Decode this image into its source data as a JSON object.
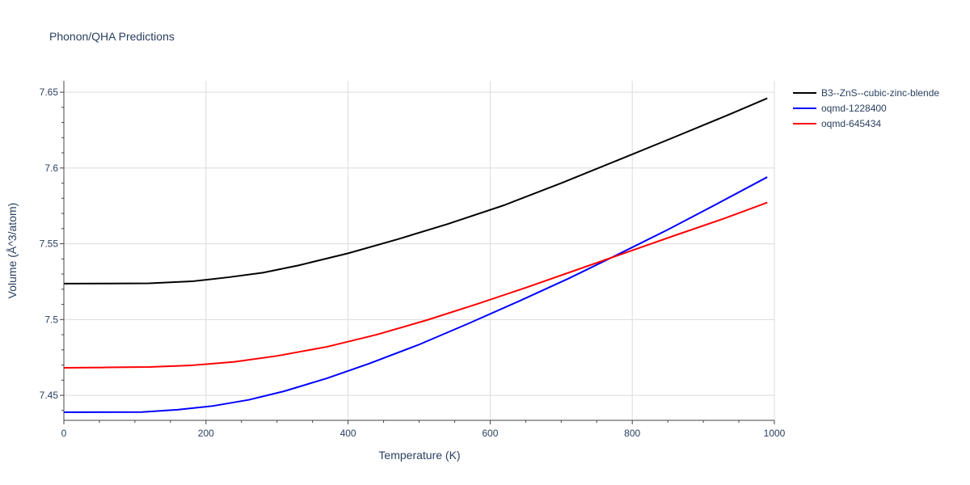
{
  "chart_data": {
    "type": "line",
    "title": "Phonon/QHA Predictions",
    "xlabel": "Temperature (K)",
    "ylabel": "Volume (Å^3/atom)",
    "xlim": [
      0,
      1000
    ],
    "ylim": [
      7.4335,
      7.6575
    ],
    "x_ticks": [
      0,
      200,
      400,
      600,
      800,
      1000
    ],
    "x_tick_labels": [
      "0",
      "200",
      "400",
      "600",
      "800",
      "1000"
    ],
    "y_ticks": [
      7.45,
      7.5,
      7.55,
      7.6,
      7.65
    ],
    "y_tick_labels": [
      "7.45",
      "7.5",
      "7.55",
      "7.6",
      "7.65"
    ],
    "grid": true,
    "legend_position": "top-right outside",
    "series": [
      {
        "name": "B3--ZnS--cubic-zinc-blende",
        "color": "#000000",
        "x": [
          0,
          60,
          120,
          180,
          230,
          280,
          330,
          400,
          470,
          540,
          620,
          700,
          780,
          860,
          940,
          990
        ],
        "y": [
          7.5237,
          7.5238,
          7.5239,
          7.5252,
          7.5278,
          7.5309,
          7.5357,
          7.5437,
          7.553,
          7.563,
          7.5755,
          7.59,
          7.6052,
          7.6205,
          7.636,
          7.646
        ]
      },
      {
        "name": "oqmd-1228400",
        "color": "#0000ff",
        "x": [
          0,
          50,
          110,
          160,
          210,
          260,
          310,
          370,
          430,
          500,
          570,
          640,
          710,
          780,
          850,
          920,
          990
        ],
        "y": [
          7.4388,
          7.4389,
          7.439,
          7.4405,
          7.443,
          7.447,
          7.4527,
          7.4612,
          7.471,
          7.4835,
          7.4975,
          7.512,
          7.527,
          7.543,
          7.5593,
          7.5765,
          7.594
        ]
      },
      {
        "name": "oqmd-645434",
        "color": "#ff0000",
        "x": [
          0,
          60,
          120,
          180,
          240,
          300,
          370,
          440,
          510,
          580,
          650,
          720,
          790,
          860,
          930,
          990
        ],
        "y": [
          7.4682,
          7.4684,
          7.4687,
          7.4698,
          7.4721,
          7.476,
          7.482,
          7.49,
          7.4995,
          7.51,
          7.521,
          7.5325,
          7.544,
          7.5555,
          7.5668,
          7.5772
        ]
      }
    ]
  }
}
